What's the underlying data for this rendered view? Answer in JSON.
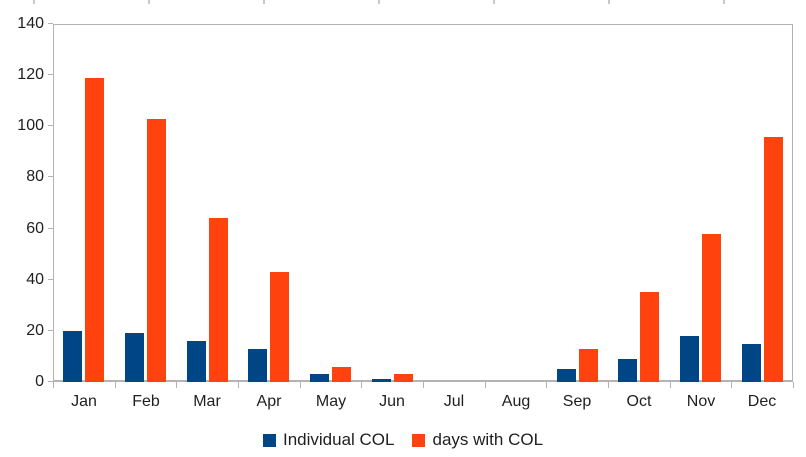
{
  "chart_data": {
    "type": "bar",
    "title": "",
    "xlabel": "",
    "ylabel": "",
    "categories": [
      "Jan",
      "Feb",
      "Mar",
      "Apr",
      "May",
      "Jun",
      "Jul",
      "Aug",
      "Sep",
      "Oct",
      "Nov",
      "Dec"
    ],
    "series": [
      {
        "name": "Individual COL",
        "color": "#004586",
        "values": [
          20,
          19,
          16,
          13,
          3,
          1,
          0,
          0,
          5,
          9,
          18,
          15
        ]
      },
      {
        "name": "days with COL",
        "color": "#ff420e",
        "values": [
          119,
          103,
          64,
          43,
          6,
          3,
          0,
          0,
          13,
          35,
          58,
          96
        ]
      }
    ],
    "ylim": [
      0,
      140
    ],
    "ytick_step": 20,
    "yticks": [
      0,
      20,
      40,
      60,
      80,
      100,
      120,
      140
    ],
    "grid": false,
    "legend_position": "bottom",
    "plot_border_color": "#b3b3b3",
    "text_color": "#1f1f1f"
  }
}
